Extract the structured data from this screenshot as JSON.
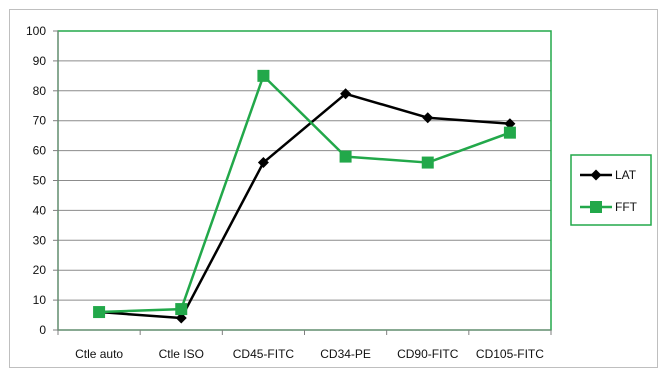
{
  "chart_data": {
    "type": "line",
    "title": "",
    "xlabel": "",
    "ylabel": "",
    "categories": [
      "Ctle auto",
      "Ctle ISO",
      "CD45-FITC",
      "CD34-PE",
      "CD90-FITC",
      "CD105-FITC"
    ],
    "ylim": [
      0,
      100
    ],
    "yticks": [
      0,
      10,
      20,
      30,
      40,
      50,
      60,
      70,
      80,
      90,
      100
    ],
    "grid": "horizontal",
    "legend_position": "right",
    "series": [
      {
        "name": "LAT",
        "values": [
          6,
          4,
          56,
          79,
          71,
          69
        ],
        "color": "#000000",
        "marker": "diamond"
      },
      {
        "name": "FFT",
        "values": [
          6,
          7,
          85,
          58,
          56,
          66
        ],
        "color": "#22a84a",
        "marker": "square"
      }
    ],
    "plot_border_color": "#22a84a",
    "legend_border_color": "#22a84a",
    "grid_color": "#8c8c8c"
  }
}
